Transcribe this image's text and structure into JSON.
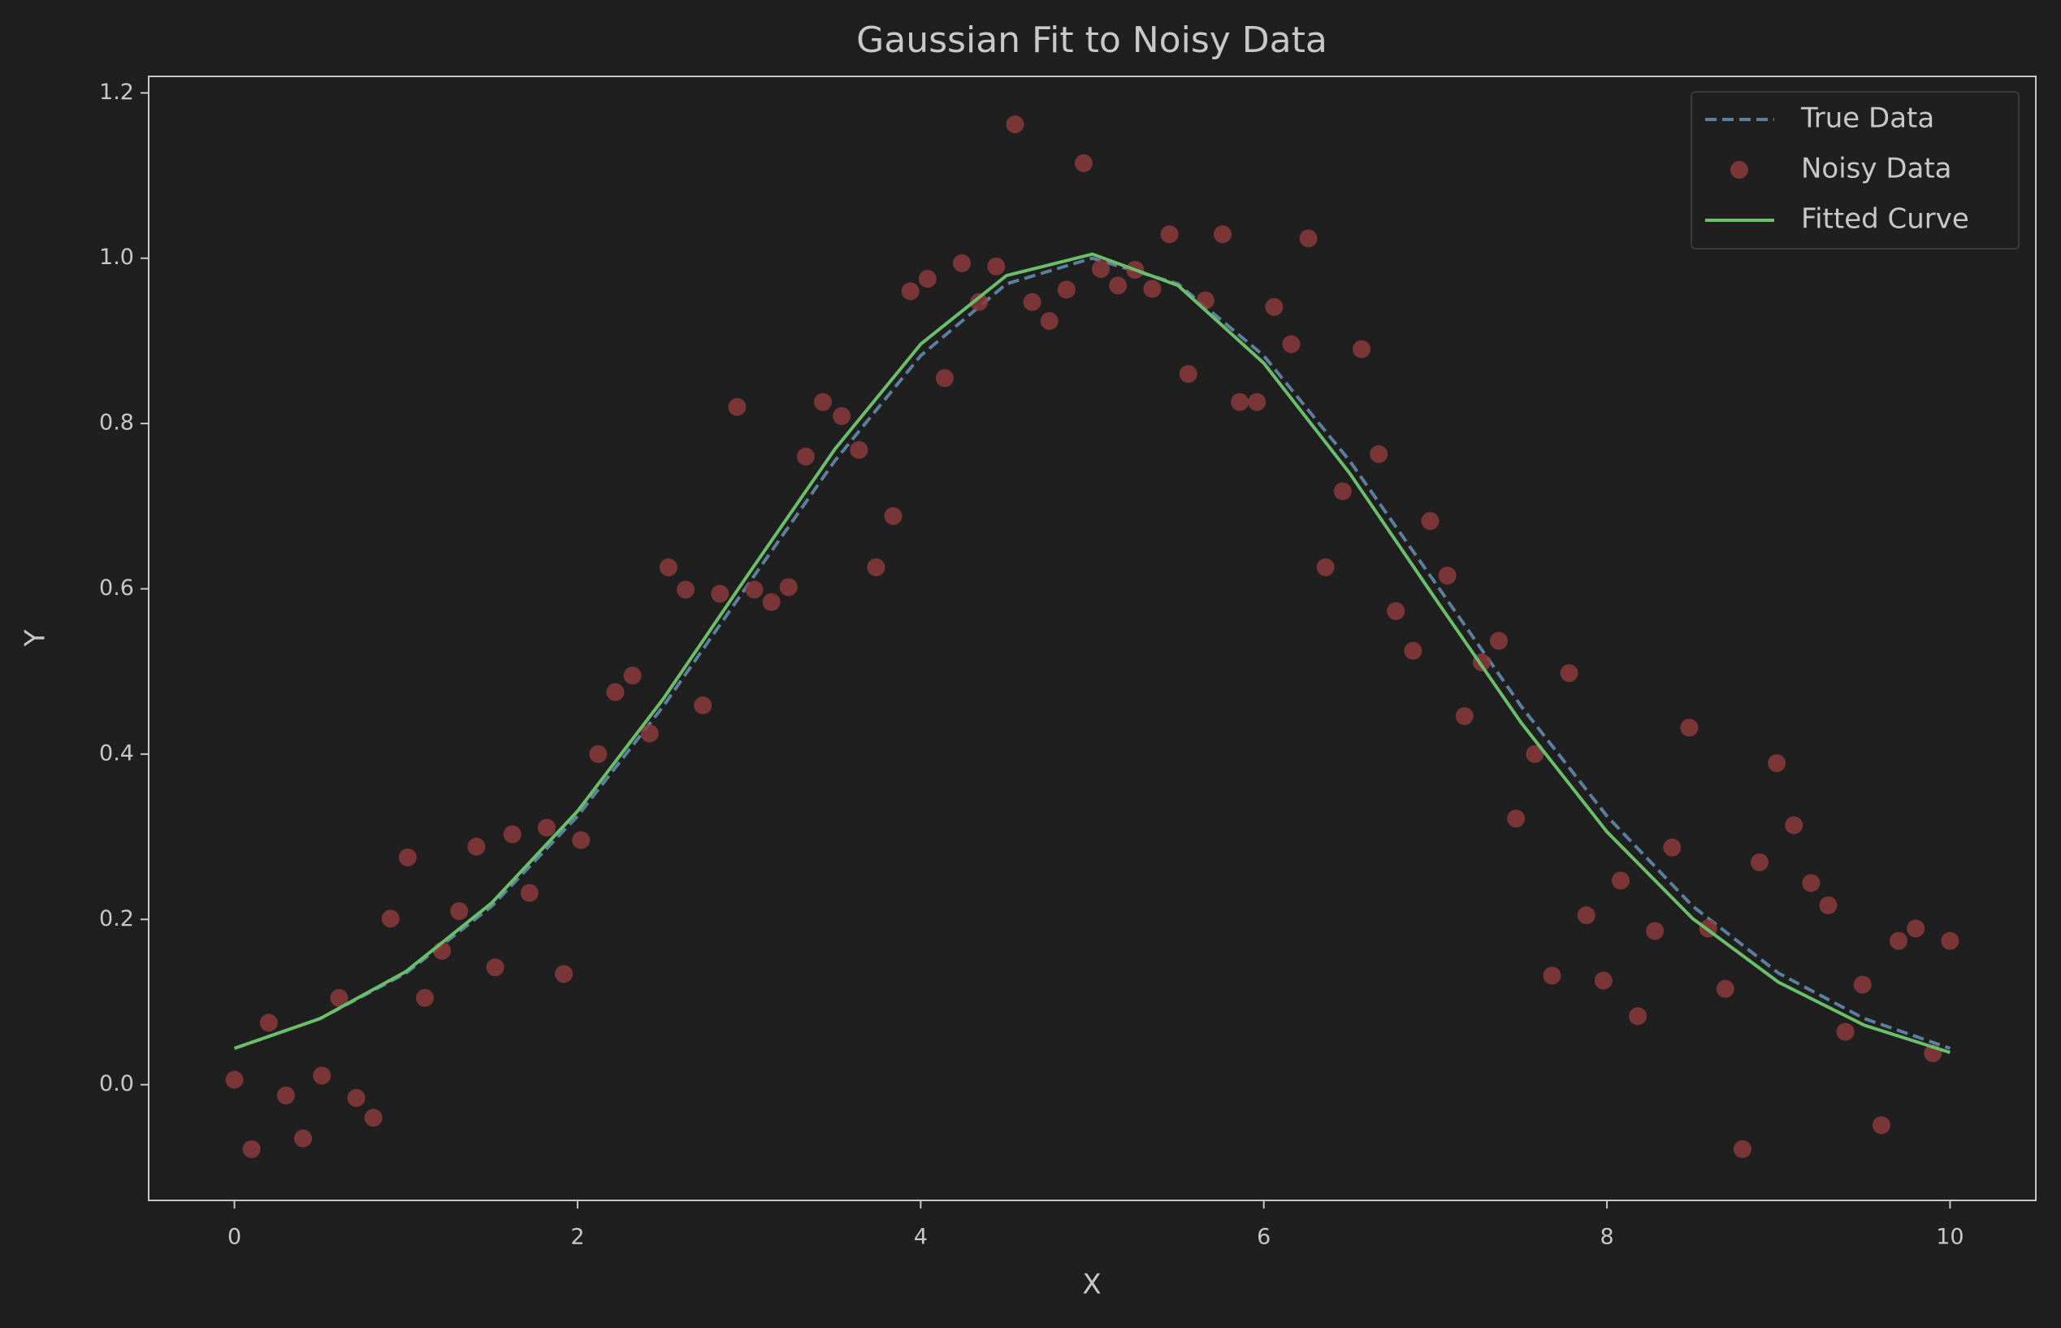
{
  "chart_data": {
    "type": "line",
    "title": "Gaussian Fit to Noisy Data",
    "xlabel": "X",
    "ylabel": "Y",
    "xlim": [
      -0.5,
      10.5
    ],
    "ylim": [
      -0.14,
      1.22
    ],
    "xticks": [
      0,
      2,
      4,
      6,
      8,
      10
    ],
    "yticks": [
      {
        "value": 0,
        "label": "0.0"
      },
      0.2,
      0.4,
      0.6,
      0.8,
      {
        "value": 1,
        "label": "1.0"
      },
      1.2
    ],
    "grid": false,
    "legend": "upper right",
    "series": [
      {
        "name": "True Data",
        "color": "#5b7f9e",
        "style": "dashed",
        "x": [
          0,
          0.5,
          1,
          1.5,
          2,
          2.5,
          3,
          3.5,
          4,
          4.5,
          5,
          5.5,
          6,
          6.5,
          7,
          7.5,
          8,
          8.5,
          9,
          9.5,
          10
        ],
        "values": [
          0.044,
          0.08,
          0.135,
          0.216,
          0.325,
          0.458,
          0.607,
          0.755,
          0.882,
          0.969,
          1.0,
          0.969,
          0.882,
          0.755,
          0.607,
          0.458,
          0.325,
          0.216,
          0.135,
          0.08,
          0.044
        ]
      },
      {
        "name": "Noisy Data",
        "color": "#8b3b3b",
        "style": "markers",
        "x": [
          0,
          0.1,
          0.2,
          0.3,
          0.4,
          0.51,
          0.61,
          0.71,
          0.81,
          0.91,
          1.01,
          1.11,
          1.21,
          1.31,
          1.41,
          1.52,
          1.62,
          1.72,
          1.82,
          1.92,
          2.02,
          2.12,
          2.22,
          2.32,
          2.42,
          2.53,
          2.63,
          2.73,
          2.83,
          2.93,
          3.03,
          3.13,
          3.23,
          3.33,
          3.43,
          3.54,
          3.64,
          3.74,
          3.84,
          3.94,
          4.04,
          4.14,
          4.24,
          4.34,
          4.44,
          4.55,
          4.65,
          4.75,
          4.85,
          4.95,
          5.05,
          5.15,
          5.25,
          5.35,
          5.45,
          5.56,
          5.66,
          5.76,
          5.86,
          5.96,
          6.06,
          6.16,
          6.26,
          6.36,
          6.46,
          6.57,
          6.67,
          6.77,
          6.87,
          6.97,
          7.07,
          7.17,
          7.27,
          7.37,
          7.47,
          7.58,
          7.68,
          7.78,
          7.88,
          7.98,
          8.08,
          8.18,
          8.28,
          8.38,
          8.48,
          8.59,
          8.69,
          8.79,
          8.89,
          8.99,
          9.09,
          9.19,
          9.29,
          9.39,
          9.49,
          9.6,
          9.7,
          9.8,
          9.9,
          10
        ],
        "values": [
          0.006,
          -0.078,
          0.075,
          -0.013,
          -0.065,
          0.011,
          0.105,
          -0.016,
          -0.04,
          0.201,
          0.275,
          0.105,
          0.162,
          0.21,
          0.288,
          0.142,
          0.303,
          0.232,
          0.311,
          0.134,
          0.296,
          0.4,
          0.475,
          0.495,
          0.425,
          0.626,
          0.599,
          0.459,
          0.594,
          0.82,
          0.599,
          0.584,
          0.602,
          0.76,
          0.826,
          0.809,
          0.768,
          0.626,
          0.688,
          0.96,
          0.975,
          0.855,
          0.994,
          0.947,
          0.99,
          1.162,
          0.947,
          0.924,
          0.962,
          1.115,
          0.987,
          0.967,
          0.986,
          0.963,
          1.029,
          0.86,
          0.949,
          1.029,
          0.826,
          0.826,
          0.941,
          0.896,
          1.024,
          0.626,
          0.718,
          0.89,
          0.763,
          0.573,
          0.525,
          0.682,
          0.616,
          0.446,
          0.511,
          0.537,
          0.322,
          0.4,
          0.132,
          0.498,
          0.205,
          0.126,
          0.247,
          0.083,
          0.186,
          0.287,
          0.432,
          0.189,
          0.116,
          -0.078,
          0.269,
          0.389,
          0.314,
          0.244,
          0.217,
          0.064,
          0.121,
          -0.049,
          0.174,
          0.189,
          0.038,
          0.174
        ]
      },
      {
        "name": "Fitted Curve",
        "color": "#6bbf6a",
        "style": "solid",
        "x": [
          0,
          0.5,
          1,
          1.5,
          2,
          2.5,
          3,
          3.5,
          4,
          4.5,
          5,
          5.5,
          6,
          6.5,
          7,
          7.5,
          8,
          8.5,
          9,
          9.5,
          10
        ],
        "values": [
          0.044,
          0.08,
          0.137,
          0.22,
          0.331,
          0.467,
          0.619,
          0.769,
          0.896,
          0.979,
          1.005,
          0.967,
          0.873,
          0.74,
          0.588,
          0.438,
          0.306,
          0.201,
          0.124,
          0.072,
          0.039
        ]
      }
    ]
  }
}
